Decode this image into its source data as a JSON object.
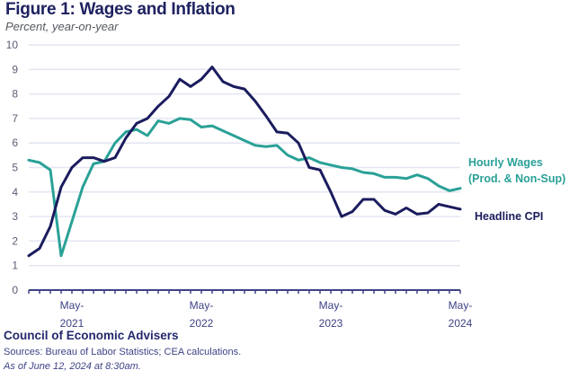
{
  "header": {
    "title": "Figure 1: Wages and Inflation",
    "subtitle": "Percent, year-on-year"
  },
  "footer": {
    "organization": "Council of Economic Advisers",
    "sources": "Sources: Bureau of Labor Statistics; CEA calculations.",
    "as_of": "As of June 12, 2024 at 8:30am."
  },
  "colors": {
    "wages": "#2aa197",
    "cpi": "#1b1c5e",
    "grid": "#e3e6f2",
    "axis": "#3d4285"
  },
  "chart_data": {
    "type": "line",
    "title": "Figure 1: Wages and Inflation",
    "subtitle": "Percent, year-on-year",
    "xlabel": "",
    "ylabel": "Percent, year-on-year",
    "ylim": [
      0,
      10
    ],
    "yticks": [
      0,
      1,
      2,
      3,
      4,
      5,
      6,
      7,
      8,
      9,
      10
    ],
    "grid": true,
    "x": [
      "Jan-2021",
      "Feb-2021",
      "Mar-2021",
      "Apr-2021",
      "May-2021",
      "Jun-2021",
      "Jul-2021",
      "Aug-2021",
      "Sep-2021",
      "Oct-2021",
      "Nov-2021",
      "Dec-2021",
      "Jan-2022",
      "Feb-2022",
      "Mar-2022",
      "Apr-2022",
      "May-2022",
      "Jun-2022",
      "Jul-2022",
      "Aug-2022",
      "Sep-2022",
      "Oct-2022",
      "Nov-2022",
      "Dec-2022",
      "Jan-2023",
      "Feb-2023",
      "Mar-2023",
      "Apr-2023",
      "May-2023",
      "Jun-2023",
      "Jul-2023",
      "Aug-2023",
      "Sep-2023",
      "Oct-2023",
      "Nov-2023",
      "Dec-2023",
      "Jan-2024",
      "Feb-2024",
      "Mar-2024",
      "Apr-2024",
      "May-2024"
    ],
    "xtick_labels": [
      {
        "index": 4,
        "line1": "May-",
        "line2": "2021"
      },
      {
        "index": 16,
        "line1": "May-",
        "line2": "2022"
      },
      {
        "index": 28,
        "line1": "May-",
        "line2": "2023"
      },
      {
        "index": 40,
        "line1": "May-",
        "line2": "2024"
      }
    ],
    "series": [
      {
        "name": "Hourly Wages (Prod. & Non-Sup)",
        "label_line1": "Hourly Wages",
        "label_line2": "(Prod. & Non-Sup)",
        "color": "#2aa197",
        "values": [
          5.3,
          5.2,
          4.9,
          1.4,
          2.8,
          4.2,
          5.15,
          5.25,
          6.0,
          6.45,
          6.55,
          6.3,
          6.9,
          6.8,
          7.0,
          6.95,
          6.65,
          6.7,
          6.5,
          6.3,
          6.1,
          5.9,
          5.85,
          5.9,
          5.5,
          5.3,
          5.4,
          5.2,
          5.1,
          5.0,
          4.95,
          4.8,
          4.75,
          4.6,
          4.6,
          4.55,
          4.7,
          4.55,
          4.25,
          4.05,
          4.15
        ]
      },
      {
        "name": "Headline CPI",
        "label_line1": "Headline CPI",
        "color": "#1b1c5e",
        "values": [
          1.4,
          1.7,
          2.6,
          4.2,
          5.0,
          5.4,
          5.4,
          5.25,
          5.4,
          6.2,
          6.8,
          7.0,
          7.5,
          7.9,
          8.6,
          8.3,
          8.6,
          9.1,
          8.5,
          8.3,
          8.2,
          7.7,
          7.1,
          6.45,
          6.4,
          6.0,
          5.0,
          4.9,
          4.0,
          3.0,
          3.2,
          3.7,
          3.7,
          3.25,
          3.1,
          3.35,
          3.1,
          3.15,
          3.5,
          3.4,
          3.3
        ]
      }
    ]
  }
}
